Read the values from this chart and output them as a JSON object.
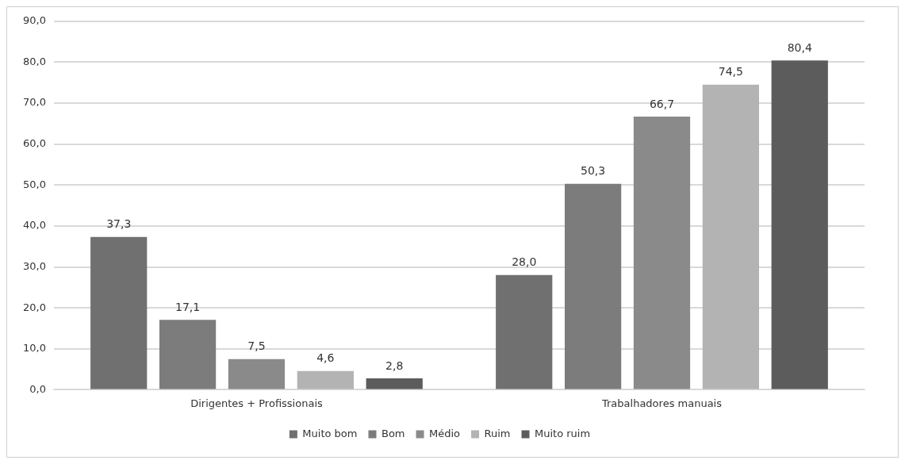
{
  "chart_data": {
    "type": "bar",
    "categories": [
      "Dirigentes + Profissionais",
      "Trabalhadores manuais"
    ],
    "series": [
      {
        "name": "Muito bom",
        "color": "#707070",
        "values": [
          37.3,
          28.0
        ],
        "value_labels": [
          "37,3",
          "28,0"
        ]
      },
      {
        "name": "Bom",
        "color": "#7c7c7c",
        "values": [
          17.1,
          50.3
        ],
        "value_labels": [
          "17,1",
          "50,3"
        ]
      },
      {
        "name": "Médio",
        "color": "#8a8a8a",
        "values": [
          7.5,
          66.7
        ],
        "value_labels": [
          "7,5",
          "66,7"
        ]
      },
      {
        "name": "Ruim",
        "color": "#b3b3b3",
        "values": [
          4.6,
          74.5
        ],
        "value_labels": [
          "4,6",
          "74,5"
        ]
      },
      {
        "name": "Muito ruim",
        "color": "#5c5c5c",
        "values": [
          2.8,
          80.4
        ],
        "value_labels": [
          "2,8",
          "80,4"
        ]
      }
    ],
    "ylim": [
      0,
      90
    ],
    "yticks": [
      {
        "value": 0,
        "label": "0,0"
      },
      {
        "value": 10,
        "label": "10,0"
      },
      {
        "value": 20,
        "label": "20,0"
      },
      {
        "value": 30,
        "label": "30,0"
      },
      {
        "value": 40,
        "label": "40,0"
      },
      {
        "value": 50,
        "label": "50,0"
      },
      {
        "value": 60,
        "label": "60,0"
      },
      {
        "value": 70,
        "label": "70,0"
      },
      {
        "value": 80,
        "label": "80,0"
      },
      {
        "value": 90,
        "label": "90,0"
      }
    ],
    "grid": "y",
    "legend": "bottom"
  }
}
